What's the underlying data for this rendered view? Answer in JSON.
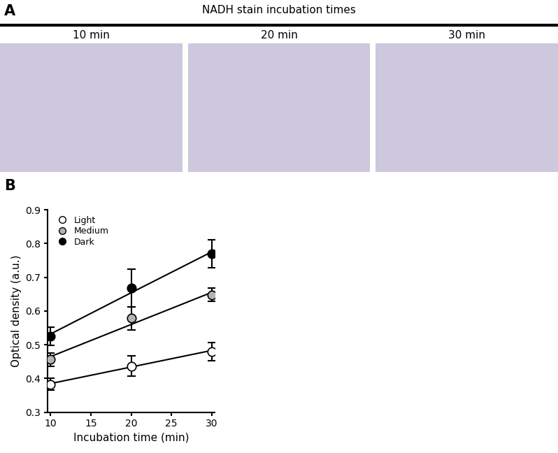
{
  "panel_a": {
    "label": "A",
    "title": "NADH stain incubation times",
    "images": [
      "10 min",
      "20 min",
      "30 min"
    ]
  },
  "panel_b_label": "B",
  "chart_data": {
    "type": "line",
    "x_label": "Incubation time (min)",
    "y_label": "Optical density (a.u.)",
    "x": [
      10,
      20,
      30
    ],
    "xlim": [
      9.6,
      30.4
    ],
    "xticks": [
      10,
      15,
      20,
      25,
      30
    ],
    "ylim": [
      0.3,
      0.9
    ],
    "yticks": [
      0.3,
      0.4,
      0.5,
      0.6,
      0.7,
      0.8,
      0.9
    ],
    "grid": false,
    "legend": "upper left",
    "marker": "o",
    "line_style": "solid",
    "series": [
      {
        "name": "Light",
        "color": "#ffffff",
        "values": [
          0.383,
          0.437,
          0.479
        ],
        "errors": [
          0.018,
          0.03,
          0.027
        ],
        "fit_values": [
          0.385,
          0.434,
          0.483
        ]
      },
      {
        "name": "Medium",
        "color": "#b4b4b4",
        "values": [
          0.456,
          0.578,
          0.648
        ],
        "errors": [
          0.02,
          0.035,
          0.02
        ],
        "fit_values": [
          0.465,
          0.56,
          0.655
        ]
      },
      {
        "name": "Dark",
        "color": "#000000",
        "values": [
          0.526,
          0.668,
          0.77
        ],
        "errors": [
          0.027,
          0.055,
          0.042
        ],
        "fit_values": [
          0.532,
          0.654,
          0.775
        ]
      }
    ]
  }
}
